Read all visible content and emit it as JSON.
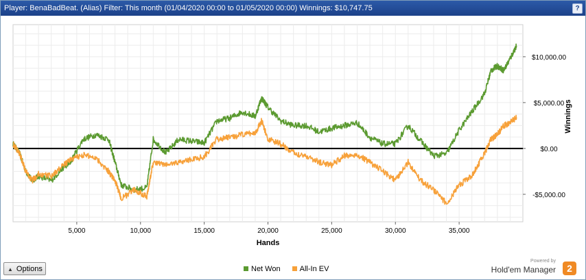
{
  "window": {
    "title": "Player: BenaBadBeat. (Alias) Filter: This month (01/04/2020 00:00 to 01/05/2020 00:00) Winnings: $10,747.75",
    "help_label": "?"
  },
  "toolbar": {
    "options_label": "Options"
  },
  "legend": {
    "items": [
      "Net Won",
      "All-In EV"
    ]
  },
  "branding": {
    "powered_by": "Powered by",
    "name": "Hold'em Manager",
    "badge": "2"
  },
  "chart_data": {
    "type": "line",
    "xlabel": "Hands",
    "ylabel": "Winnings",
    "xlim": [
      0,
      40000
    ],
    "ylim": [
      -8000,
      13500
    ],
    "x_ticks": [
      5000,
      10000,
      15000,
      20000,
      25000,
      30000,
      35000
    ],
    "x_tick_labels": [
      "5,000",
      "10,000",
      "15,000",
      "20,000",
      "25,000",
      "30,000",
      "35,000"
    ],
    "y_ticks": [
      -5000,
      0,
      5000,
      10000
    ],
    "y_tick_labels": [
      "-$5,000.00",
      "$0.00",
      "$5,000.00",
      "$10,000.00"
    ],
    "grid": true,
    "legend_position": "bottom-center",
    "series": [
      {
        "name": "Net Won",
        "color": "#5b9a30",
        "x": [
          0,
          500,
          1000,
          1500,
          2000,
          3000,
          4000,
          4500,
          5500,
          6500,
          7500,
          8000,
          8500,
          9500,
          10500,
          11000,
          12000,
          13000,
          14000,
          15000,
          16000,
          17000,
          18000,
          19000,
          19500,
          20000,
          21000,
          22000,
          23000,
          24000,
          25000,
          26000,
          27000,
          28000,
          29000,
          30000,
          31000,
          32000,
          33000,
          34000,
          35000,
          36000,
          37000,
          37500,
          38000,
          38500,
          39000,
          39500
        ],
        "values": [
          500,
          -500,
          -2500,
          -3500,
          -3000,
          -3500,
          -2000,
          -1500,
          1000,
          1500,
          1000,
          -1500,
          -4000,
          -4500,
          -4300,
          1000,
          -500,
          1000,
          800,
          600,
          3000,
          3300,
          4000,
          3500,
          5500,
          4500,
          3000,
          2500,
          2500,
          1800,
          2200,
          2500,
          2800,
          1200,
          500,
          500,
          2500,
          800,
          -800,
          -600,
          2000,
          4000,
          6000,
          8500,
          9000,
          8500,
          9800,
          11200
        ]
      },
      {
        "name": "All-In EV",
        "color": "#f7a13a",
        "x": [
          0,
          500,
          1000,
          1500,
          2000,
          3000,
          4000,
          4500,
          5500,
          6500,
          7500,
          8000,
          8500,
          9500,
          10500,
          11000,
          12000,
          13000,
          14000,
          15000,
          16000,
          17000,
          18000,
          19000,
          19500,
          20000,
          21000,
          22000,
          23000,
          24000,
          25000,
          26000,
          27000,
          28000,
          29000,
          30000,
          31000,
          32000,
          33000,
          34000,
          35000,
          36000,
          37000,
          37500,
          38000,
          38500,
          39000,
          39500
        ],
        "values": [
          500,
          -500,
          -2500,
          -3500,
          -2800,
          -3000,
          -1800,
          -1200,
          -700,
          -1000,
          -2500,
          -3500,
          -5500,
          -4500,
          -5200,
          -1500,
          -1800,
          -1500,
          -1200,
          -900,
          1000,
          1200,
          1500,
          1700,
          3000,
          1000,
          500,
          -500,
          -800,
          -1500,
          -1800,
          -800,
          -700,
          -1500,
          -2500,
          -3500,
          -1500,
          -3500,
          -4500,
          -6000,
          -4000,
          -3000,
          -500,
          1000,
          1500,
          2500,
          2800,
          3400
        ]
      }
    ]
  }
}
